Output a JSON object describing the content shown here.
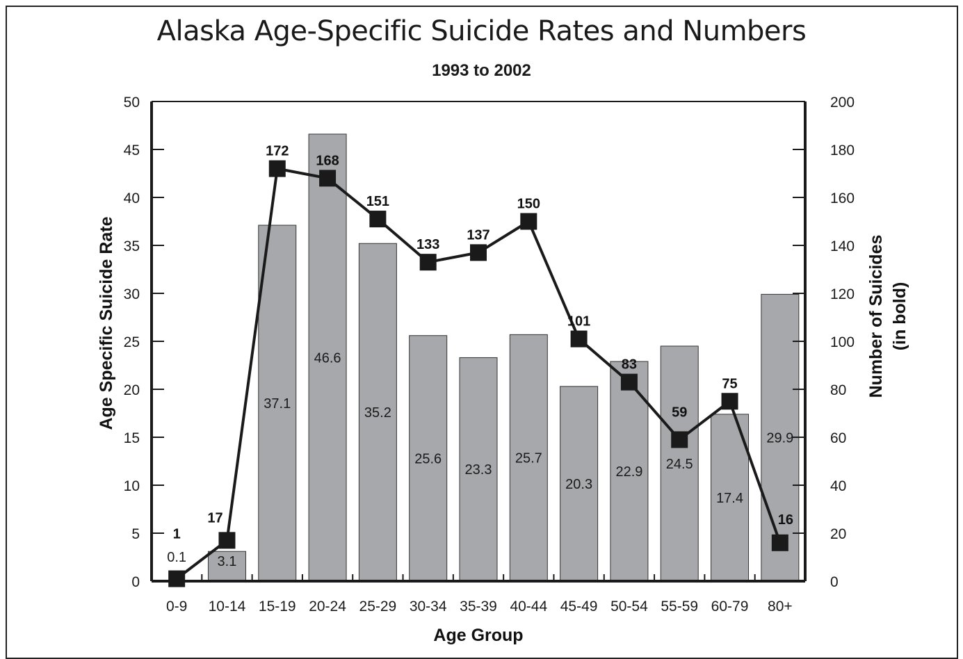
{
  "chart_data": {
    "type": "bar",
    "title": "Alaska Age-Specific Suicide Rates and Numbers",
    "subtitle": "1993 to 2002",
    "xlabel": "Age Group",
    "ylabel": "Age Specific Suicide Rate",
    "y2label_line1": "Number of Suicides",
    "y2label_line2": "(in bold)",
    "categories": [
      "0-9",
      "10-14",
      "15-19",
      "20-24",
      "25-29",
      "30-34",
      "35-39",
      "40-44",
      "45-49",
      "50-54",
      "55-59",
      "60-79",
      "80+"
    ],
    "series": [
      {
        "type": "bar",
        "axis": "left",
        "values": [
          0.1,
          3.1,
          37.1,
          46.6,
          35.2,
          25.6,
          23.3,
          25.7,
          20.3,
          22.9,
          24.5,
          17.4,
          29.9
        ],
        "labels": [
          "0.1",
          "3.1",
          "37.1",
          "46.6",
          "35.2",
          "25.6",
          "23.3",
          "25.7",
          "20.3",
          "22.9",
          "24.5",
          "17.4",
          "29.9"
        ]
      },
      {
        "type": "line",
        "axis": "right",
        "values": [
          1,
          17,
          172,
          168,
          151,
          133,
          137,
          150,
          101,
          83,
          59,
          75,
          16
        ],
        "labels": [
          "1",
          "17",
          "172",
          "168",
          "151",
          "133",
          "137",
          "150",
          "101",
          "83",
          "59",
          "75",
          "16"
        ]
      }
    ],
    "ylim": [
      0,
      50
    ],
    "yticks": [
      "0",
      "5",
      "10",
      "15",
      "20",
      "25",
      "30",
      "35",
      "40",
      "45",
      "50"
    ],
    "y2lim": [
      0,
      200
    ],
    "y2ticks": [
      "0",
      "20",
      "40",
      "60",
      "80",
      "100",
      "120",
      "140",
      "160",
      "180",
      "200"
    ],
    "grid": false,
    "legend": "none",
    "colors": {
      "bar_fill": "#a7a8ab",
      "bar_stroke": "#333333",
      "line": "#1a1a1a",
      "marker": "#1a1a1a",
      "axis": "#1a1a1a"
    }
  }
}
